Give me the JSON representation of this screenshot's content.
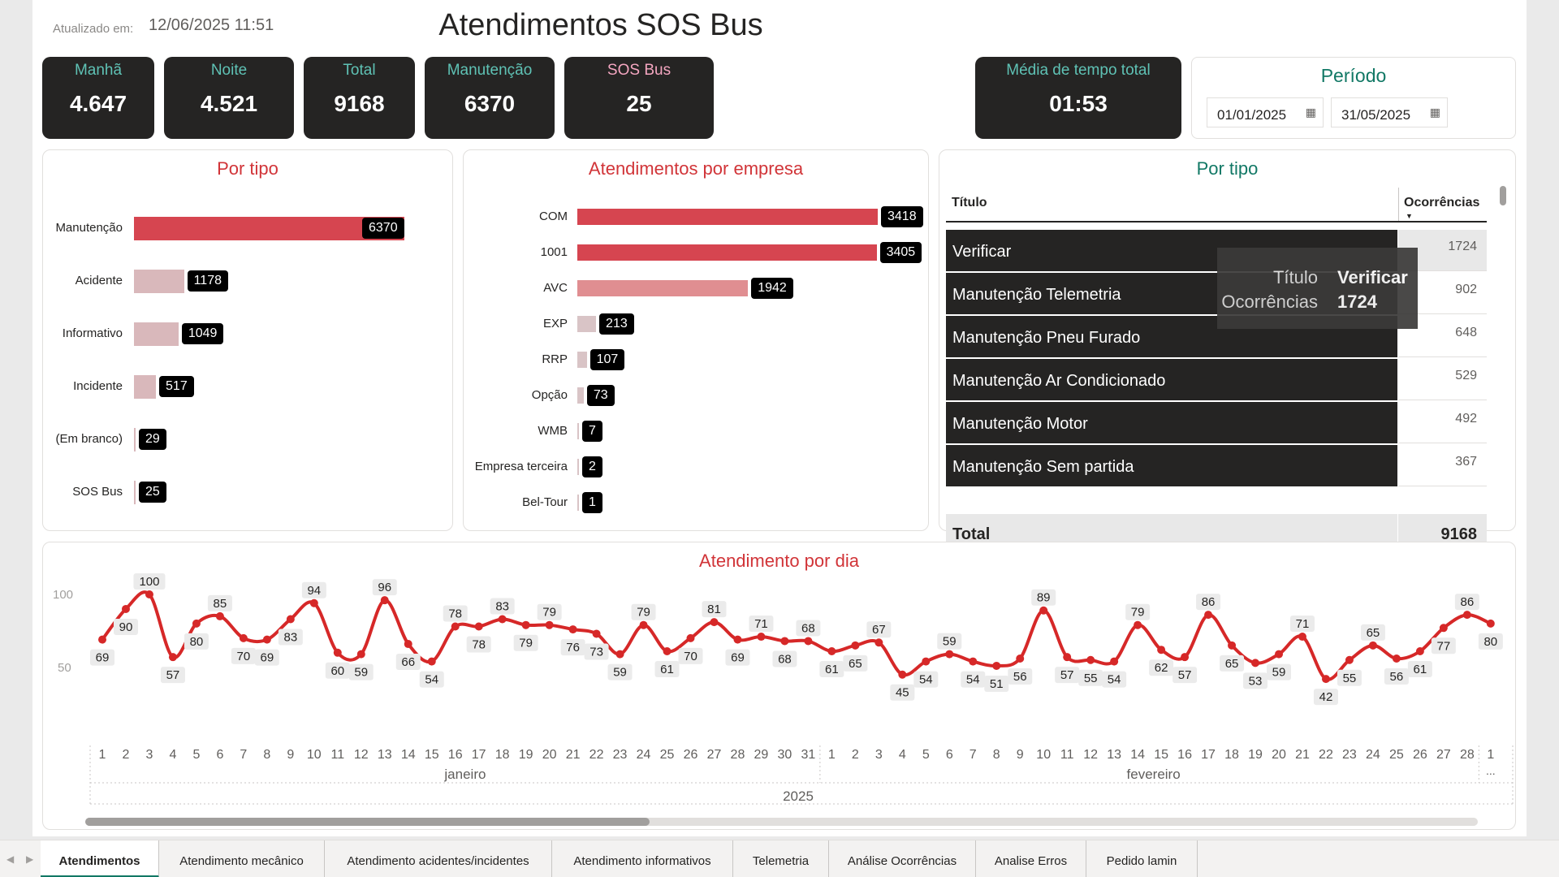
{
  "header": {
    "updated_label": "Atualizado em:",
    "updated_value": "12/06/2025 11:51",
    "title": "Atendimentos SOS Bus"
  },
  "kpis": [
    {
      "label": "Manhã",
      "value": "4.647",
      "label_color": "#5fc2b5"
    },
    {
      "label": "Noite",
      "value": "4.521",
      "label_color": "#5fc2b5"
    },
    {
      "label": "Total",
      "value": "9168",
      "label_color": "#5fc2b5"
    },
    {
      "label": "Manutenção",
      "value": "6370",
      "label_color": "#5fc2b5"
    },
    {
      "label": "SOS Bus",
      "value": "25",
      "label_color": "#f4a6c0"
    },
    {
      "label": "Média de tempo total",
      "value": "01:53",
      "label_color": "#5fc2b5"
    }
  ],
  "periodo": {
    "title": "Período",
    "start": "01/01/2025",
    "end": "31/05/2025"
  },
  "por_tipo_chart": {
    "title": "Por tipo",
    "chart_data": {
      "type": "bar",
      "categories": [
        "Manutenção",
        "Acidente",
        "Informativo",
        "Incidente",
        "(Em branco)",
        "SOS Bus"
      ],
      "values": [
        6370,
        1178,
        1049,
        517,
        29,
        25
      ],
      "colors": [
        "#d64550",
        "#d9b8bb",
        "#d9b8bb",
        "#d9b8bb",
        "#d9b8bb",
        "#d9b8bb"
      ]
    }
  },
  "empresa_chart": {
    "title": "Atendimentos por empresa",
    "chart_data": {
      "type": "bar",
      "categories": [
        "COM",
        "1001",
        "AVC",
        "EXP",
        "RRP",
        "Opção",
        "WMB",
        "Empresa terceira",
        "Bel-Tour"
      ],
      "values": [
        3418,
        3405,
        1942,
        213,
        107,
        73,
        7,
        2,
        1
      ],
      "colors": [
        "#d64550",
        "#d64550",
        "#e08e91",
        "#d9c4c6",
        "#d9c4c6",
        "#d9c4c6",
        "#d9c4c6",
        "#d9c4c6",
        "#d9c4c6"
      ]
    }
  },
  "por_tipo_table": {
    "title": "Por tipo",
    "col_titulo": "Título",
    "col_ocorrencias": "Ocorrências",
    "rows": [
      {
        "titulo": "Verificar",
        "ocorrencias": "1724"
      },
      {
        "titulo": "Manutenção Telemetria",
        "ocorrencias": "902"
      },
      {
        "titulo": "Manutenção Pneu Furado",
        "ocorrencias": "648"
      },
      {
        "titulo": "Manutenção Ar Condicionado",
        "ocorrencias": "529"
      },
      {
        "titulo": "Manutenção Motor",
        "ocorrencias": "492"
      },
      {
        "titulo": "Manutenção Sem partida",
        "ocorrencias": "367"
      }
    ],
    "total_label": "Total",
    "total_value": "9168",
    "tooltip": {
      "label1": "Título",
      "value1": "Verificar",
      "label2": "Ocorrências",
      "value2": "1724"
    }
  },
  "dia_chart": {
    "title": "Atendimento por dia",
    "chart_data": {
      "type": "line",
      "y_ticks": [
        "100",
        "50"
      ],
      "ylim": [
        50,
        100
      ],
      "month_labels": [
        "janeiro",
        "fevereiro"
      ],
      "year_label": "2025",
      "x": [
        "1",
        "2",
        "3",
        "4",
        "5",
        "6",
        "7",
        "8",
        "9",
        "10",
        "11",
        "12",
        "13",
        "14",
        "15",
        "16",
        "17",
        "18",
        "19",
        "20",
        "21",
        "22",
        "23",
        "24",
        "25",
        "26",
        "27",
        "28",
        "29",
        "30",
        "31",
        "1",
        "2",
        "3",
        "4",
        "5",
        "6",
        "7",
        "8",
        "9",
        "10",
        "11",
        "12",
        "13",
        "14",
        "15",
        "16",
        "17",
        "18",
        "19",
        "20",
        "21",
        "22",
        "23",
        "24",
        "25",
        "26",
        "27",
        "28",
        "1"
      ],
      "values": [
        69,
        90,
        100,
        57,
        80,
        85,
        70,
        69,
        83,
        94,
        60,
        59,
        96,
        66,
        54,
        78,
        78,
        83,
        79,
        79,
        76,
        73,
        59,
        79,
        61,
        70,
        81,
        69,
        71,
        68,
        68,
        61,
        65,
        67,
        45,
        54,
        59,
        54,
        51,
        56,
        89,
        57,
        55,
        54,
        79,
        62,
        57,
        86,
        65,
        53,
        59,
        71,
        42,
        55,
        65,
        56,
        61,
        77,
        86,
        80
      ],
      "last_tick_overflow": "..."
    }
  },
  "tabs": [
    {
      "label": "Atendimentos",
      "active": true
    },
    {
      "label": "Atendimento mecânico"
    },
    {
      "label": "Atendimento acidentes/incidentes"
    },
    {
      "label": "Atendimento informativos"
    },
    {
      "label": "Telemetria"
    },
    {
      "label": "Análise Ocorrências"
    },
    {
      "label": "Analise Erros"
    },
    {
      "label": "Pedido lamin"
    }
  ]
}
